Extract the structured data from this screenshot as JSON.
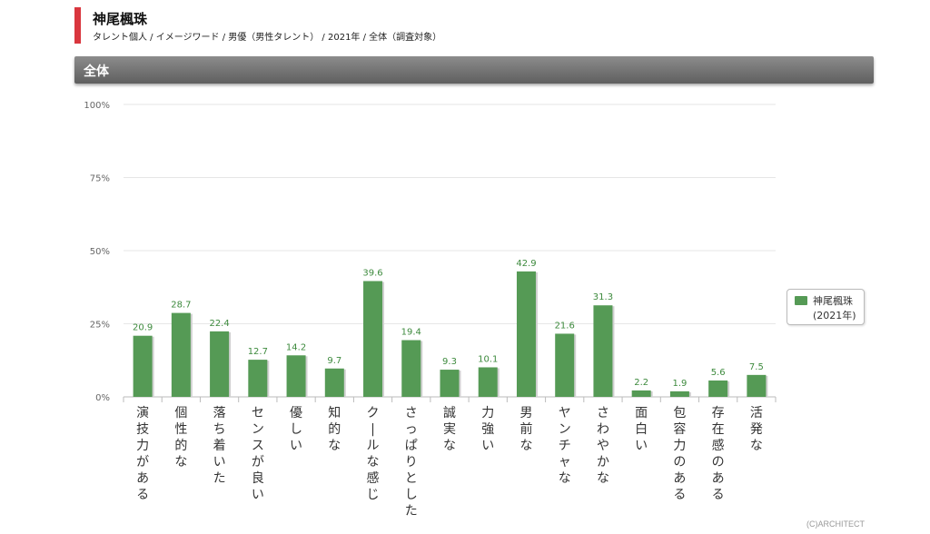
{
  "header": {
    "title": "神尾楓珠",
    "subtitle": "タレント個人 / イメージワード / 男優（男性タレント） / 2021年 / 全体（調査対象）"
  },
  "section": {
    "label": "全体"
  },
  "credit": "(C)ARCHITECT",
  "chart_data": {
    "type": "bar",
    "title": "",
    "xlabel": "",
    "ylabel": "",
    "ylim": [
      0,
      100
    ],
    "y_ticks": [
      "0%",
      "25%",
      "50%",
      "75%",
      "100%"
    ],
    "grid": true,
    "legend_position": "right",
    "categories": [
      "演技力がある",
      "個性的な",
      "落ち着いた",
      "センスが良い",
      "優しい",
      "知的な",
      "クールな感じ",
      "さっぱりとした",
      "誠実な",
      "力強い",
      "男前な",
      "ヤンチャな",
      "さわやかな",
      "面白い",
      "包容力のある",
      "存在感のある",
      "活発な"
    ],
    "series": [
      {
        "name": "神尾楓珠",
        "name_line2": "(2021年)",
        "color": "#559a55",
        "values": [
          20.9,
          28.7,
          22.4,
          12.7,
          14.2,
          9.7,
          39.6,
          19.4,
          9.3,
          10.1,
          42.9,
          21.6,
          31.3,
          2.2,
          1.9,
          5.6,
          7.5
        ]
      }
    ]
  }
}
